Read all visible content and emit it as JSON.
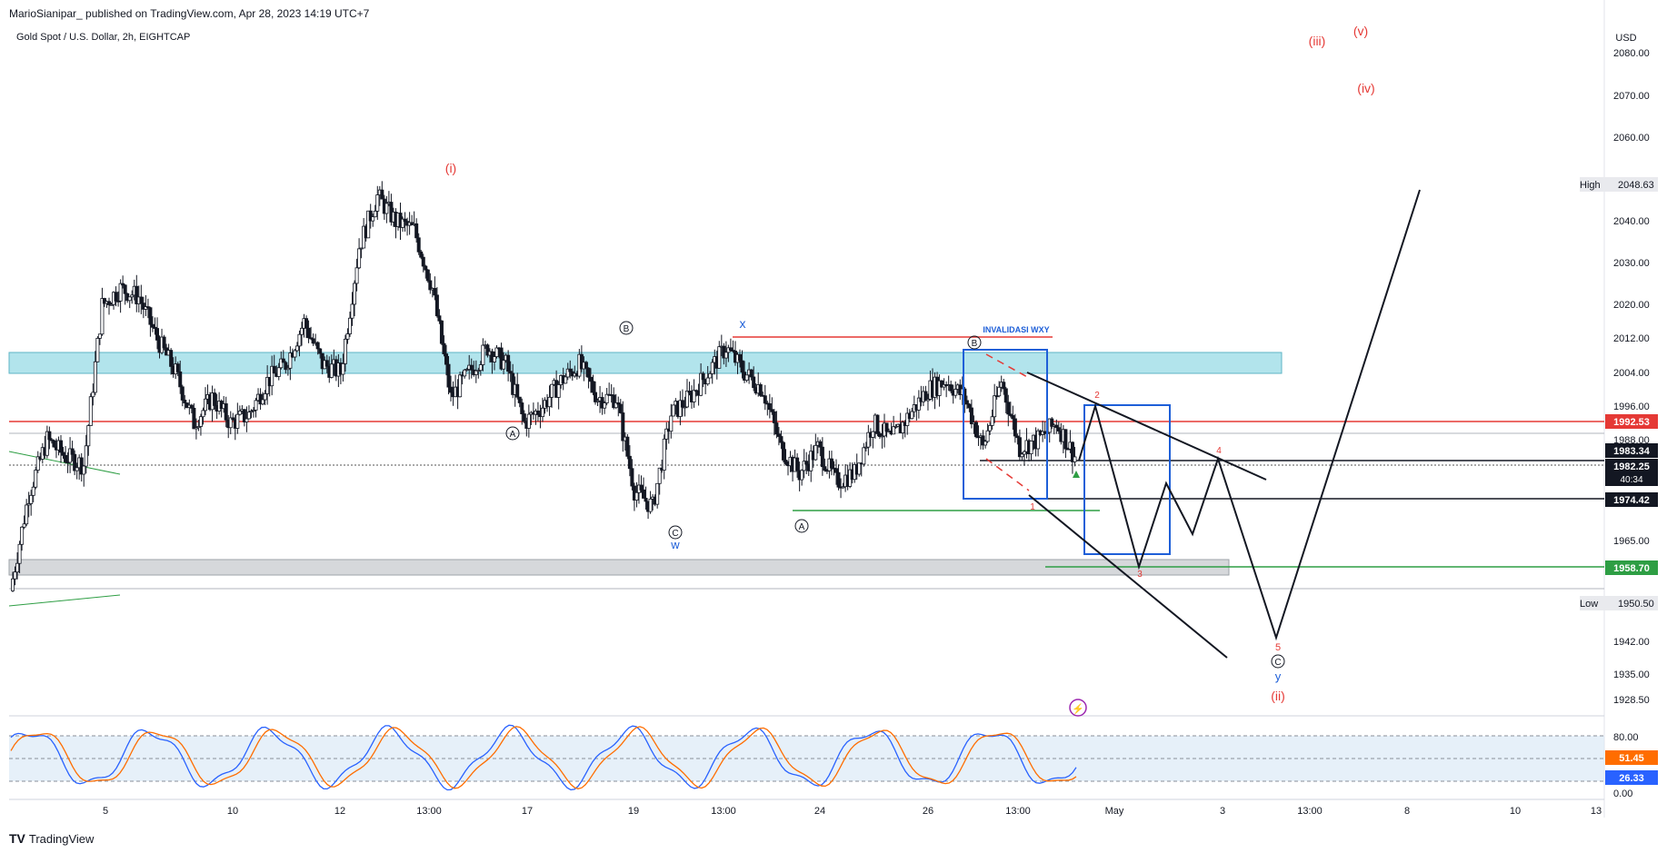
{
  "header": {
    "publish_line": "MarioSianipar_ published on TradingView.com, Apr 28, 2023 14:19 UTC+7",
    "symbol_line": "Gold Spot / U.S. Dollar, 2h, EIGHTCAP"
  },
  "footer": {
    "logo": "TV",
    "brand": "TradingView"
  },
  "chart_data": [
    {
      "type": "candlestick",
      "currency": "USD",
      "y_ticks": [
        "2080.00",
        "2070.00",
        "2060.00",
        "2040.00",
        "2030.00",
        "2020.00",
        "2012.00",
        "2004.00",
        "1996.00",
        "1988.00",
        "1965.00",
        "1942.00",
        "1935.00",
        "1928.50"
      ],
      "x_ticks": [
        "5",
        "10",
        "12",
        "13:00",
        "17",
        "19",
        "13:00",
        "24",
        "26",
        "13:00",
        "May",
        "3",
        "13:00",
        "8",
        "10",
        "13"
      ],
      "high_label": "High",
      "high_value": "2048.63",
      "low_label": "Low",
      "low_value": "1950.50",
      "price_tags": [
        "1992.53",
        "1983.34",
        "1982.25",
        "40:34",
        "1974.42",
        "1958.70"
      ],
      "price_series": [
        1952,
        1975,
        1988,
        1984,
        1982,
        2020,
        2024,
        2022,
        2012,
        2004,
        1992,
        1998,
        1992,
        1994,
        2002,
        2006,
        2016,
        2006,
        2004,
        2034,
        2046,
        2040,
        2038,
        2024,
        1998,
        2004,
        2010,
        2006,
        1992,
        1996,
        2002,
        2006,
        1998,
        1998,
        1976,
        1972,
        1994,
        1998,
        2004,
        2010,
        2004,
        2000,
        1986,
        1980,
        1986,
        1978,
        1980,
        1992,
        1988,
        1994,
        2000,
        2002,
        1998,
        1986,
        2002,
        1986,
        1988,
        1992,
        1984
      ],
      "wave_labels": [
        "(i)",
        "(iii)",
        "(v)",
        "(iv)",
        "B",
        "A",
        "C",
        "w",
        "x",
        "B",
        "A",
        "B",
        "INVALIDASI WXY",
        "1",
        "2",
        "3",
        "4",
        "5",
        "C",
        "y",
        "(ii)"
      ],
      "annotations": [
        "⚡"
      ]
    },
    {
      "type": "line",
      "name": "Stochastic",
      "ylim": [
        0,
        100
      ],
      "y_ticks": [
        "80.00",
        "0.00"
      ],
      "values": [
        "51.45",
        "26.33"
      ]
    }
  ]
}
